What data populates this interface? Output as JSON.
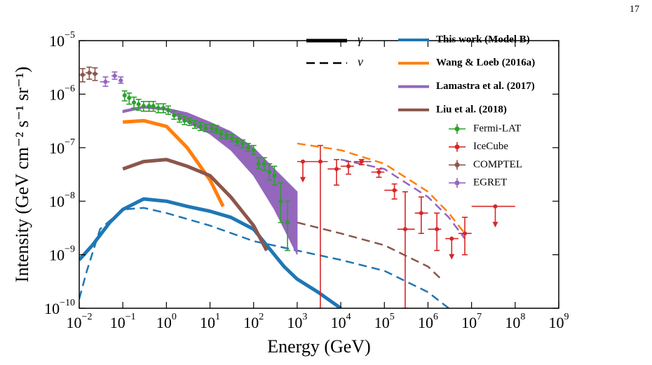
{
  "page_number": "17",
  "chart_data": {
    "type": "loglog",
    "xlabel": "Energy (GeV)",
    "ylabel": "Intensity (GeV cm⁻² s⁻¹ sr⁻¹)",
    "xlim": [
      0.01,
      1000000000
    ],
    "ylim": [
      1e-10,
      1e-05
    ],
    "log_x": true,
    "log_y": true,
    "xticks": [
      {
        "value": 0.01,
        "label": "10",
        "exp": "−2"
      },
      {
        "value": 0.1,
        "label": "10",
        "exp": "−1"
      },
      {
        "value": 1,
        "label": "10",
        "exp": "0"
      },
      {
        "value": 10,
        "label": "10",
        "exp": "1"
      },
      {
        "value": 100,
        "label": "10",
        "exp": "2"
      },
      {
        "value": 1000,
        "label": "10",
        "exp": "3"
      },
      {
        "value": 10000,
        "label": "10",
        "exp": "4"
      },
      {
        "value": 100000,
        "label": "10",
        "exp": "5"
      },
      {
        "value": 1000000,
        "label": "10",
        "exp": "6"
      },
      {
        "value": 10000000,
        "label": "10",
        "exp": "7"
      },
      {
        "value": 100000000,
        "label": "10",
        "exp": "8"
      },
      {
        "value": 1000000000,
        "label": "10",
        "exp": "9"
      }
    ],
    "yticks": [
      {
        "value": 1e-10,
        "label": "10",
        "exp": "−10"
      },
      {
        "value": 1e-09,
        "label": "10",
        "exp": "−9"
      },
      {
        "value": 1e-08,
        "label": "10",
        "exp": "−8"
      },
      {
        "value": 1e-07,
        "label": "10",
        "exp": "−7"
      },
      {
        "value": 1e-06,
        "label": "10",
        "exp": "−6"
      },
      {
        "value": 1e-05,
        "label": "10",
        "exp": "−5"
      }
    ],
    "line_styles": {
      "gamma": "γ",
      "nu": "ν"
    },
    "model_series": [
      {
        "name": "This work (Model B)",
        "color": "#1f77b4",
        "gamma": {
          "x": [
            0.01,
            0.02,
            0.05,
            0.1,
            0.3,
            1,
            3,
            10,
            30,
            100,
            200,
            500,
            1000,
            3000,
            10000
          ],
          "values": [
            8e-10,
            1.5e-09,
            4e-09,
            7e-09,
            1.1e-08,
            1e-08,
            8e-09,
            6.5e-09,
            5e-09,
            3e-09,
            1.5e-09,
            6e-10,
            3.5e-10,
            2e-10,
            1e-10
          ]
        },
        "nu": {
          "x": [
            0.01,
            0.015,
            0.03,
            0.1,
            0.3,
            1,
            10,
            100,
            1000,
            10000,
            100000,
            1000000,
            3000000
          ],
          "values": [
            1.5e-10,
            5e-10,
            3e-09,
            7e-09,
            7.5e-09,
            6e-09,
            3.5e-09,
            1.8e-09,
            1.2e-09,
            8e-10,
            5e-10,
            2e-10,
            1e-10
          ]
        }
      },
      {
        "name": "Wang & Loeb (2016a)",
        "color": "#ff7f0e",
        "gamma": {
          "x": [
            0.1,
            0.3,
            1,
            3,
            10,
            20
          ],
          "values": [
            3e-07,
            3.2e-07,
            2.5e-07,
            1e-07,
            2.5e-08,
            8e-09
          ]
        },
        "nu": {
          "x": [
            1000,
            10000,
            100000,
            1000000,
            3000000,
            7000000
          ],
          "values": [
            1.2e-07,
            9e-08,
            5e-08,
            1.5e-08,
            6e-09,
            2.5e-09
          ]
        }
      },
      {
        "name": "Lamastra et al. (2017)",
        "color": "#9467bd",
        "gamma": {
          "x": [
            0.1,
            0.3,
            1,
            3,
            10,
            30,
            100,
            300,
            1000
          ],
          "low": [
            4.5e-07,
            5.5e-07,
            5e-07,
            3e-07,
            1.8e-07,
            9e-08,
            3e-08,
            7e-09,
            1e-09
          ],
          "high": [
            5e-07,
            6e-07,
            5.5e-07,
            4.5e-07,
            3e-07,
            2e-07,
            1e-07,
            4e-08,
            1.5e-08
          ]
        },
        "nu": {
          "x": [
            10000,
            100000,
            1000000,
            3000000,
            7000000
          ],
          "values": [
            6e-08,
            4e-08,
            1.2e-08,
            5e-09,
            2e-09
          ]
        }
      },
      {
        "name": "Liu et al. (2018)",
        "color": "#8c564b",
        "gamma": {
          "x": [
            0.1,
            0.3,
            1,
            3,
            10,
            30,
            100,
            200
          ],
          "values": [
            4e-08,
            5.5e-08,
            6e-08,
            4.5e-08,
            3e-08,
            1.2e-08,
            3.5e-09,
            1.2e-09
          ]
        },
        "nu": {
          "x": [
            1000,
            10000,
            100000,
            1000000,
            2000000
          ],
          "values": [
            4e-09,
            2.5e-09,
            1.5e-09,
            6e-10,
            3.5e-10
          ]
        }
      }
    ],
    "data_series": [
      {
        "name": "Fermi-LAT",
        "color": "#2ca02c",
        "x": [
          0.11,
          0.14,
          0.18,
          0.23,
          0.3,
          0.4,
          0.5,
          0.65,
          0.85,
          1.1,
          1.5,
          2,
          2.6,
          3.4,
          4.5,
          6,
          8,
          11,
          14,
          18,
          24,
          32,
          42,
          56,
          75,
          100,
          130,
          175,
          230,
          300,
          420,
          600
        ],
        "values": [
          9.5e-07,
          8.5e-07,
          7e-07,
          6.5e-07,
          6e-07,
          6e-07,
          6e-07,
          5.5e-07,
          5.5e-07,
          5e-07,
          4e-07,
          3.5e-07,
          3.2e-07,
          3e-07,
          2.7e-07,
          2.5e-07,
          2.3e-07,
          2.3e-07,
          2.2e-07,
          1.8e-07,
          1.7e-07,
          1.5e-07,
          1.3e-07,
          1.2e-07,
          1e-07,
          9e-08,
          5e-08,
          5e-08,
          3.5e-08,
          3e-08,
          1e-08,
          4e-09
        ],
        "y_low": [
          7.5e-07,
          6.5e-07,
          5.5e-07,
          5e-07,
          4.8e-07,
          4.8e-07,
          4.8e-07,
          4.5e-07,
          4.5e-07,
          4.2e-07,
          3.4e-07,
          3e-07,
          2.7e-07,
          2.6e-07,
          2.3e-07,
          2.1e-07,
          2e-07,
          2e-07,
          1.9e-07,
          1.5e-07,
          1.45e-07,
          1.3e-07,
          1.1e-07,
          1e-07,
          8.5e-08,
          7.5e-08,
          4e-08,
          3.8e-08,
          2.5e-08,
          2e-08,
          4e-09,
          1.2e-09
        ],
        "y_high": [
          1.15e-06,
          1.05e-06,
          8.8e-07,
          8e-07,
          7.3e-07,
          7.3e-07,
          7.3e-07,
          6.6e-07,
          6.6e-07,
          6e-07,
          4.8e-07,
          4.2e-07,
          3.8e-07,
          3.5e-07,
          3.2e-07,
          3e-07,
          2.7e-07,
          2.7e-07,
          2.6e-07,
          2.1e-07,
          2e-07,
          1.75e-07,
          1.5e-07,
          1.4e-07,
          1.2e-07,
          1.1e-07,
          6.5e-08,
          6.5e-08,
          5e-08,
          4.5e-08,
          2.2e-08,
          1e-08
        ]
      },
      {
        "name": "IceCube",
        "color": "#d62728",
        "x": [
          1350,
          3400,
          8000,
          15000,
          30000,
          75000,
          170000,
          300000,
          700000,
          1600000,
          3500000,
          7000000,
          35000000
        ],
        "values": [
          5.5e-08,
          5.5e-08,
          4e-08,
          4.5e-08,
          5.5e-08,
          3.5e-08,
          1.6e-08,
          3e-09,
          6e-09,
          3e-09,
          2e-09,
          2.5e-09,
          8e-09
        ],
        "y_low": [
          null,
          1e-10,
          2e-08,
          3.2e-08,
          4.8e-08,
          2.8e-08,
          1.1e-08,
          1e-10,
          2.5e-09,
          1.2e-09,
          null,
          1e-09,
          null
        ],
        "y_high": [
          null,
          1.1e-07,
          6e-08,
          5.5e-08,
          6e-08,
          4e-08,
          2.1e-08,
          1.5e-08,
          1.2e-08,
          6e-09,
          null,
          5e-09,
          null
        ],
        "x_low": [
          1000,
          2000,
          5000,
          10000,
          20000,
          50000,
          100000,
          200000,
          500000,
          1000000,
          2500000,
          5000000,
          10000000
        ],
        "x_high": [
          2000,
          5000,
          10000,
          20000,
          50000,
          100000,
          200000,
          500000,
          1000000,
          2000000,
          5000000,
          10000000,
          100000000
        ],
        "upper_limits": [
          true,
          false,
          false,
          false,
          false,
          false,
          false,
          false,
          false,
          false,
          true,
          false,
          true
        ]
      },
      {
        "name": "COMPTEL",
        "color": "#8c564b",
        "x": [
          0.012,
          0.017,
          0.023
        ],
        "values": [
          2.3e-06,
          2.5e-06,
          2.4e-06
        ],
        "y_low": [
          1.7e-06,
          1.9e-06,
          1.8e-06
        ],
        "y_high": [
          3e-06,
          3.2e-06,
          3.1e-06
        ],
        "x_low": [
          0.01,
          0.014,
          0.02
        ],
        "x_high": [
          0.014,
          0.02,
          0.027
        ]
      },
      {
        "name": "EGRET",
        "color": "#9467bd",
        "x": [
          0.04,
          0.065,
          0.09
        ],
        "values": [
          1.7e-06,
          2.2e-06,
          1.8e-06
        ],
        "y_low": [
          1.4e-06,
          1.9e-06,
          1.6e-06
        ],
        "y_high": [
          2.1e-06,
          2.6e-06,
          2.1e-06
        ],
        "x_low": [
          0.03,
          0.055,
          0.08
        ],
        "x_high": [
          0.05,
          0.075,
          0.1
        ]
      }
    ]
  }
}
